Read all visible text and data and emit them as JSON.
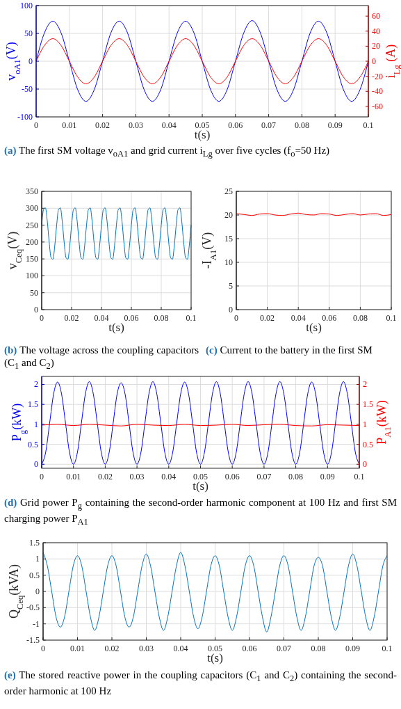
{
  "chart_data": [
    {
      "type": "line",
      "title": "(a) The first SM voltage v$_{oA1}$ and grid current i$_{Lg}$ over five cycles (f$_{o}$=50 Hz)",
      "xlabel": "t(s)",
      "ylabel": "v$_{oA1}$(V)",
      "y2label": "i$_{Lg}$ (A)",
      "x": [
        0,
        0.0025,
        0.005,
        0.0075,
        0.01,
        0.0125,
        0.015,
        0.0175,
        0.02,
        0.0225,
        0.025,
        0.0275,
        0.03,
        0.0325,
        0.035,
        0.0375,
        0.04,
        0.0425,
        0.045,
        0.0475,
        0.05,
        0.0525,
        0.055,
        0.0575,
        0.06,
        0.0625,
        0.065,
        0.0675,
        0.07,
        0.0725,
        0.075,
        0.0775,
        0.08,
        0.0825,
        0.085,
        0.0875,
        0.09,
        0.0925,
        0.095,
        0.0975,
        0.1
      ],
      "series": [
        {
          "color": "#0000ff",
          "values": [
            0,
            51,
            72,
            51,
            0,
            -51,
            -72,
            -51,
            0,
            51,
            72,
            51,
            0,
            -51,
            -72,
            -51,
            0,
            51,
            72,
            51,
            0,
            -51,
            -72,
            -51,
            0,
            51,
            73,
            51,
            0,
            -51,
            -72,
            -51,
            0,
            51,
            72,
            51,
            0,
            -51,
            -72,
            -51,
            0
          ]
        },
        {
          "color": "#ff0000",
          "axis": "y2",
          "values": [
            0,
            21,
            30,
            21,
            0,
            -21,
            -30,
            -21,
            0,
            21,
            30,
            21,
            0,
            -21,
            -30,
            -21,
            0,
            21,
            30,
            21,
            0,
            -21,
            -30,
            -21,
            0,
            21,
            30,
            21,
            0,
            -21,
            -30,
            -21,
            0,
            21,
            30,
            21,
            0,
            -21,
            -30,
            -21,
            0
          ]
        }
      ],
      "xlim": [
        0,
        0.1
      ],
      "xticks": [
        0,
        0.01,
        0.02,
        0.03,
        0.04,
        0.05,
        0.06,
        0.07,
        0.08,
        0.09,
        0.1
      ],
      "ylim": [
        -100,
        100
      ],
      "yticks": [
        -100,
        -50,
        0,
        50,
        100
      ],
      "y2lim": [
        -74,
        74
      ],
      "y2ticks": [
        -60,
        -40,
        -20,
        0,
        20,
        40,
        60
      ],
      "grid": true,
      "marker": "none"
    },
    {
      "type": "line",
      "title": "(b) The voltage across the coupling capacitors (C$_{1}$ and C$_{2}$)",
      "xlabel": "t(s)",
      "ylabel": "v$_{Ceq}$(V)",
      "x": [
        0,
        0.00125,
        0.0025,
        0.00375,
        0.005,
        0.00625,
        0.0075,
        0.00875,
        0.01,
        0.01125,
        0.0125,
        0.01375,
        0.015,
        0.01625,
        0.0175,
        0.01875,
        0.02,
        0.02125,
        0.0225,
        0.02375,
        0.025,
        0.02625,
        0.0275,
        0.02875,
        0.03,
        0.03125,
        0.0325,
        0.03375,
        0.035,
        0.03625,
        0.0375,
        0.03875,
        0.04,
        0.04125,
        0.0425,
        0.04375,
        0.045,
        0.04625,
        0.0475,
        0.04875,
        0.05,
        0.05125,
        0.0525,
        0.05375,
        0.055,
        0.05625,
        0.0575,
        0.05875,
        0.06,
        0.06125,
        0.0625,
        0.06375,
        0.065,
        0.06625,
        0.0675,
        0.06875,
        0.07,
        0.07125,
        0.0725,
        0.07375,
        0.075,
        0.07625,
        0.0775,
        0.07875,
        0.08,
        0.08125,
        0.0825,
        0.08375,
        0.085,
        0.08625,
        0.0875,
        0.08875,
        0.09,
        0.09125,
        0.0925,
        0.09375,
        0.095,
        0.09625,
        0.0975,
        0.09875,
        0.1
      ],
      "series": [
        {
          "color": "#0072bd",
          "values": [
            250,
            296,
            301,
            261,
            200,
            154,
            149,
            189,
            250,
            296,
            301,
            261,
            200,
            154,
            149,
            189,
            250,
            296,
            301,
            261,
            200,
            154,
            149,
            189,
            250,
            296,
            301,
            261,
            200,
            154,
            149,
            189,
            250,
            296,
            301,
            261,
            200,
            154,
            149,
            189,
            250,
            296,
            301,
            261,
            200,
            154,
            149,
            189,
            250,
            296,
            301,
            261,
            200,
            154,
            149,
            189,
            250,
            296,
            301,
            261,
            200,
            154,
            149,
            189,
            250,
            296,
            301,
            261,
            200,
            154,
            149,
            189,
            250,
            296,
            301,
            261,
            200,
            154,
            149,
            189,
            250
          ]
        }
      ],
      "xlim": [
        0,
        0.1
      ],
      "xticks": [
        0,
        0.02,
        0.04,
        0.06,
        0.08,
        0.1
      ],
      "ylim": [
        0,
        350
      ],
      "yticks": [
        0,
        50,
        100,
        150,
        200,
        250,
        300,
        350
      ],
      "grid": true,
      "marker": "none"
    },
    {
      "type": "line",
      "title": "(c) Current to the battery in the first SM",
      "xlabel": "t(s)",
      "ylabel": "-I$_{A1}$(V)",
      "x": [
        0,
        0.005,
        0.01,
        0.015,
        0.02,
        0.025,
        0.03,
        0.035,
        0.04,
        0.045,
        0.05,
        0.055,
        0.06,
        0.065,
        0.07,
        0.075,
        0.08,
        0.085,
        0.09,
        0.095,
        0.1
      ],
      "series": [
        {
          "color": "#ff0000",
          "values": [
            20.3,
            20.1,
            19.9,
            20.2,
            20.3,
            20.0,
            19.9,
            20.2,
            20.4,
            20.1,
            20.0,
            20.3,
            20.2,
            19.9,
            20.1,
            20.3,
            20.0,
            20.2,
            20.3,
            19.9,
            20.1
          ]
        }
      ],
      "xlim": [
        0,
        0.1
      ],
      "xticks": [
        0,
        0.02,
        0.04,
        0.06,
        0.08,
        0.1
      ],
      "ylim": [
        0,
        25
      ],
      "yticks": [
        0,
        5,
        10,
        15,
        20,
        25
      ],
      "grid": true,
      "marker": "none"
    },
    {
      "type": "line",
      "title": "(d) Grid power P$_{g}$ containing the second-order harmonic component at 100 Hz and first SM charging power P$_{A1}$",
      "xlabel": "t(s)",
      "ylabel": "P$_{g}$(kW)",
      "y2label": "P$_{A1}$(kW)",
      "series": [
        {
          "color": "#0000ff",
          "x": [
            0,
            0.00125,
            0.0025,
            0.00375,
            0.005,
            0.00625,
            0.0075,
            0.00875,
            0.01,
            0.01125,
            0.0125,
            0.01375,
            0.015,
            0.01625,
            0.0175,
            0.01875,
            0.02,
            0.02125,
            0.0225,
            0.02375,
            0.025,
            0.02625,
            0.0275,
            0.02875,
            0.03,
            0.03125,
            0.0325,
            0.03375,
            0.035,
            0.03625,
            0.0375,
            0.03875,
            0.04,
            0.04125,
            0.0425,
            0.04375,
            0.045,
            0.04625,
            0.0475,
            0.04875,
            0.05,
            0.05125,
            0.0525,
            0.05375,
            0.055,
            0.05625,
            0.0575,
            0.05875,
            0.06,
            0.06125,
            0.0625,
            0.06375,
            0.065,
            0.06625,
            0.0675,
            0.06875,
            0.07,
            0.07125,
            0.0725,
            0.07375,
            0.075,
            0.07625,
            0.0775,
            0.07875,
            0.08,
            0.08125,
            0.0825,
            0.08375,
            0.085,
            0.08625,
            0.0875,
            0.08875,
            0.09,
            0.09125,
            0.0925,
            0.09375,
            0.095,
            0.09625,
            0.0975,
            0.09875,
            0.1
          ],
          "values": [
            0,
            0.3,
            1.03,
            1.76,
            2.06,
            1.76,
            1.03,
            0.3,
            0,
            0.3,
            1.03,
            1.76,
            2.07,
            1.76,
            1.03,
            0.3,
            0,
            0.3,
            1.03,
            1.76,
            2.04,
            1.76,
            1.03,
            0.3,
            0,
            0.3,
            1.03,
            1.76,
            2.07,
            1.76,
            1.03,
            0.3,
            0,
            0.3,
            1.03,
            1.76,
            2.06,
            1.76,
            1.03,
            0.3,
            0,
            0.3,
            1.03,
            1.76,
            2.07,
            1.76,
            1.03,
            0.3,
            0,
            0.3,
            1.03,
            1.76,
            2.07,
            1.76,
            1.03,
            0.3,
            0,
            0.3,
            1.03,
            1.76,
            2.07,
            1.76,
            1.03,
            0.3,
            0,
            0.3,
            1.03,
            1.76,
            2.06,
            1.76,
            1.03,
            0.3,
            0,
            0.3,
            1.03,
            1.76,
            2.07,
            1.76,
            1.03,
            0.3,
            0
          ]
        },
        {
          "color": "#ff0000",
          "axis": "y2",
          "x": [
            0,
            0.005,
            0.01,
            0.015,
            0.02,
            0.025,
            0.03,
            0.035,
            0.04,
            0.045,
            0.05,
            0.055,
            0.06,
            0.065,
            0.07,
            0.075,
            0.08,
            0.085,
            0.09,
            0.095,
            0.1
          ],
          "values": [
            0.98,
            1.0,
            0.97,
            1.0,
            0.98,
            0.96,
            1.0,
            0.98,
            0.97,
            1.0,
            0.97,
            0.98,
            1.0,
            0.97,
            0.99,
            1.0,
            0.97,
            0.96,
            0.99,
            0.98,
            0.97
          ]
        }
      ],
      "xlim": [
        0,
        0.1
      ],
      "xticks": [
        0,
        0.01,
        0.02,
        0.03,
        0.04,
        0.05,
        0.06,
        0.07,
        0.08,
        0.09,
        0.1
      ],
      "ylim": [
        -0.1,
        2.2
      ],
      "yticks": [
        0,
        0.5,
        1,
        1.5,
        2
      ],
      "y2lim": [
        -0.1,
        2.2
      ],
      "y2ticks": [
        0,
        0.5,
        1,
        1.5,
        2
      ],
      "grid": true,
      "marker": "none"
    },
    {
      "type": "line",
      "title": "(e) The stored reactive power in the coupling capacitors (C$_{1}$ and C$_{2}$) containing the second-order harmonic at 100 Hz",
      "xlabel": "t(s)",
      "ylabel": "Q$_{Ceq}$(kVA)",
      "x": [
        0,
        0.00125,
        0.0025,
        0.00375,
        0.005,
        0.00625,
        0.0075,
        0.00875,
        0.01,
        0.01125,
        0.0125,
        0.01375,
        0.015,
        0.01625,
        0.0175,
        0.01875,
        0.02,
        0.02125,
        0.0225,
        0.02375,
        0.025,
        0.02625,
        0.0275,
        0.02875,
        0.03,
        0.03125,
        0.0325,
        0.03375,
        0.035,
        0.03625,
        0.0375,
        0.03875,
        0.04,
        0.04125,
        0.0425,
        0.04375,
        0.045,
        0.04625,
        0.0475,
        0.04875,
        0.05,
        0.05125,
        0.0525,
        0.05375,
        0.055,
        0.05625,
        0.0575,
        0.05875,
        0.06,
        0.06125,
        0.0625,
        0.06375,
        0.065,
        0.06625,
        0.0675,
        0.06875,
        0.07,
        0.07125,
        0.0725,
        0.07375,
        0.075,
        0.07625,
        0.0775,
        0.07875,
        0.08,
        0.08125,
        0.0825,
        0.08375,
        0.085,
        0.08625,
        0.0875,
        0.08875,
        0.09,
        0.09125,
        0.0925,
        0.09375,
        0.095,
        0.09625,
        0.0975,
        0.09875,
        0.1
      ],
      "series": [
        {
          "color": "#0072bd",
          "values": [
            1.2,
            0.78,
            0,
            -0.78,
            -1.1,
            -0.78,
            0,
            0.78,
            1.1,
            0.78,
            0,
            -0.78,
            -1.2,
            -0.78,
            0,
            0.78,
            1.1,
            0.78,
            0,
            -0.78,
            -1.1,
            -0.78,
            0,
            0.78,
            1.15,
            0.78,
            0,
            -0.78,
            -1.2,
            -0.78,
            0,
            0.78,
            1.2,
            0.78,
            0,
            -0.78,
            -1.15,
            -0.78,
            0,
            0.78,
            1.1,
            0.78,
            0,
            -0.78,
            -1.2,
            -0.78,
            0,
            0.78,
            1.1,
            0.78,
            0,
            -0.78,
            -1.25,
            -0.78,
            0,
            0.78,
            1.1,
            0.78,
            0,
            -0.78,
            -1.2,
            -0.78,
            0,
            0.78,
            1.05,
            0.78,
            0,
            -0.78,
            -1.2,
            -0.78,
            0,
            0.78,
            1.15,
            0.78,
            0,
            -0.78,
            -1.2,
            -0.78,
            0,
            0.78,
            1.1
          ]
        }
      ],
      "xlim": [
        0,
        0.1
      ],
      "xticks": [
        0,
        0.01,
        0.02,
        0.03,
        0.04,
        0.05,
        0.06,
        0.07,
        0.08,
        0.09,
        0.1
      ],
      "ylim": [
        -1.5,
        1.5
      ],
      "yticks": [
        -1.5,
        -1,
        -0.5,
        0,
        0.5,
        1,
        1.5
      ],
      "grid": true,
      "marker": "none"
    }
  ]
}
